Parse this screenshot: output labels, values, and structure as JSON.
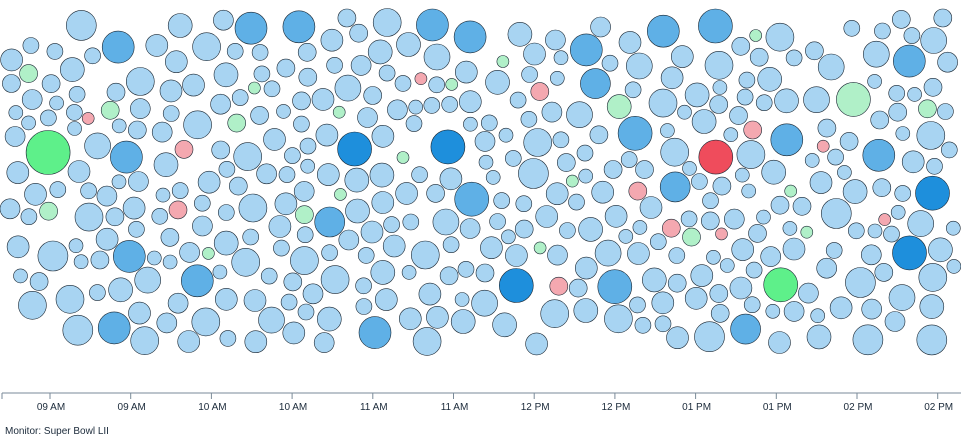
{
  "footer": {
    "monitor_label": "Monitor: Super Bowl LII"
  },
  "colors": {
    "light_blue": "#a8d4f2",
    "medium_blue": "#5fb0e6",
    "dark_blue": "#1e8fdc",
    "light_green": "#b0f0c8",
    "green": "#5ef08a",
    "light_red": "#f4a8b0",
    "red": "#ef4c5c",
    "axis": "#7a8a98",
    "outline": "#1a2733"
  },
  "chart_data": {
    "type": "scatter",
    "title": "",
    "xlabel": "",
    "ylabel": "",
    "x_axis": {
      "tick_labels": [
        "09 AM",
        "09 AM",
        "10 AM",
        "10 AM",
        "11 AM",
        "11 AM",
        "12 PM",
        "12 PM",
        "01 PM",
        "01 PM",
        "02 PM",
        "02 PM"
      ],
      "grid": false
    },
    "y_axis": {
      "visible": false
    },
    "legend": "none",
    "size_encoding": "circle radius",
    "color_encoding": [
      "light_blue",
      "medium_blue",
      "dark_blue",
      "light_green",
      "green",
      "light_red",
      "red"
    ],
    "bubble_columns": [
      {
        "col": 0,
        "bubbles": 24,
        "highlight": [
          {
            "color": "green",
            "size": 5
          },
          {
            "color": "light_green",
            "size": 2
          },
          {
            "color": "light_green",
            "size": 2
          }
        ]
      },
      {
        "col": 1,
        "bubbles": 40,
        "highlight": [
          {
            "color": "light_green",
            "size": 2
          },
          {
            "color": "light_red",
            "size": 1
          }
        ]
      },
      {
        "col": 2,
        "bubbles": 44,
        "highlight": [
          {
            "color": "light_red",
            "size": 2
          },
          {
            "color": "light_green",
            "size": 1
          },
          {
            "color": "light_red",
            "size": 2
          }
        ]
      },
      {
        "col": 3,
        "bubbles": 46,
        "highlight": [
          {
            "color": "light_green",
            "size": 2
          },
          {
            "color": "light_green",
            "size": 2
          },
          {
            "color": "light_green",
            "size": 1
          }
        ]
      },
      {
        "col": 4,
        "bubbles": 40,
        "highlight": [
          {
            "color": "dark_blue",
            "size": 4
          },
          {
            "color": "light_green",
            "size": 1
          },
          {
            "color": "light_green",
            "size": 1
          }
        ]
      },
      {
        "col": 5,
        "bubbles": 44,
        "highlight": [
          {
            "color": "dark_blue",
            "size": 4
          },
          {
            "color": "light_red",
            "size": 1
          },
          {
            "color": "light_green",
            "size": 1
          },
          {
            "color": "light_green",
            "size": 1
          }
        ]
      },
      {
        "col": 6,
        "bubbles": 42,
        "highlight": [
          {
            "color": "dark_blue",
            "size": 4
          },
          {
            "color": "light_red",
            "size": 2
          },
          {
            "color": "light_green",
            "size": 1
          },
          {
            "color": "light_green",
            "size": 1
          }
        ]
      },
      {
        "col": 7,
        "bubbles": 36,
        "highlight": [
          {
            "color": "light_red",
            "size": 2
          },
          {
            "color": "light_red",
            "size": 2
          },
          {
            "color": "light_green",
            "size": 3
          },
          {
            "color": "light_green",
            "size": 1
          }
        ]
      },
      {
        "col": 8,
        "bubbles": 46,
        "highlight": [
          {
            "color": "red",
            "size": 4
          },
          {
            "color": "light_red",
            "size": 2
          },
          {
            "color": "light_red",
            "size": 1
          },
          {
            "color": "light_green",
            "size": 2
          }
        ]
      },
      {
        "col": 9,
        "bubbles": 42,
        "highlight": [
          {
            "color": "green",
            "size": 4
          },
          {
            "color": "light_green",
            "size": 1
          },
          {
            "color": "light_red",
            "size": 2
          },
          {
            "color": "light_green",
            "size": 1
          }
        ]
      },
      {
        "col": 10,
        "bubbles": 36,
        "highlight": [
          {
            "color": "light_green",
            "size": 4
          },
          {
            "color": "light_red",
            "size": 1
          },
          {
            "color": "light_green",
            "size": 1
          }
        ]
      },
      {
        "col": 11,
        "bubbles": 34,
        "highlight": [
          {
            "color": "dark_blue",
            "size": 4
          },
          {
            "color": "dark_blue",
            "size": 4
          },
          {
            "color": "light_green",
            "size": 2
          },
          {
            "color": "light_red",
            "size": 1
          }
        ]
      },
      {
        "col": 12,
        "bubbles": 14,
        "highlight": []
      }
    ]
  }
}
